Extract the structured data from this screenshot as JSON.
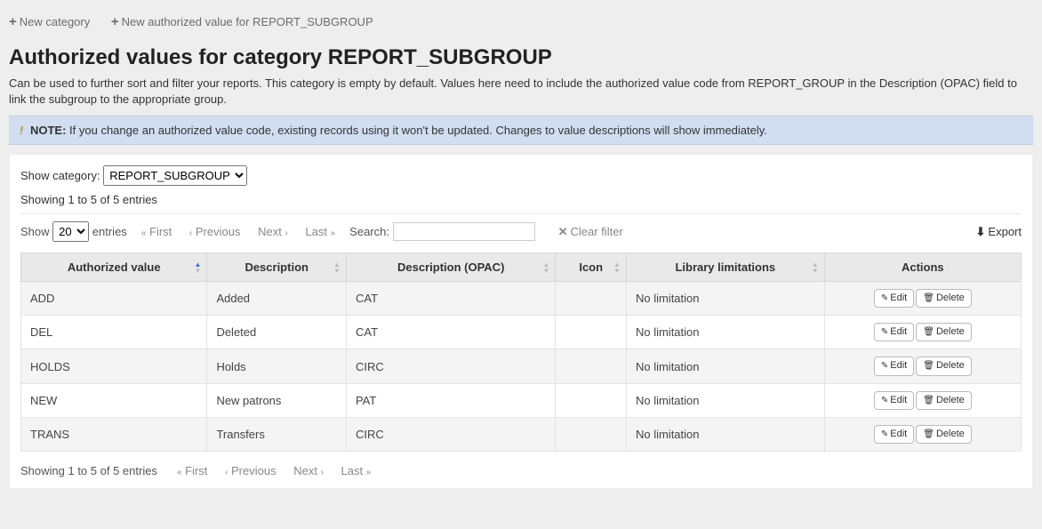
{
  "toolbar": {
    "new_category": "New category",
    "new_value": "New authorized value for REPORT_SUBGROUP"
  },
  "page": {
    "title": "Authorized values for category REPORT_SUBGROUP",
    "description": "Can be used to further sort and filter your reports. This category is empty by default. Values here need to include the authorized value code from REPORT_GROUP in the Description (OPAC) field to link the subgroup to the appropriate group."
  },
  "note": {
    "label": "NOTE:",
    "text": "If you change an authorized value code, existing records using it won't be updated. Changes to value descriptions will show immediately."
  },
  "filter": {
    "show_category_label": "Show category:",
    "selected_category": "REPORT_SUBGROUP",
    "entries_info": "Showing 1 to 5 of 5 entries"
  },
  "dt": {
    "show_label": "Show",
    "page_size": "20",
    "entries_label": "entries",
    "first": "First",
    "previous": "Previous",
    "next": "Next",
    "last": "Last",
    "search_label": "Search:",
    "clear_filter": "Clear filter",
    "export": "Export"
  },
  "columns": {
    "authorized_value": "Authorized value",
    "description": "Description",
    "description_opac": "Description (OPAC)",
    "icon": "Icon",
    "library_limitations": "Library limitations",
    "actions": "Actions"
  },
  "buttons": {
    "edit": "Edit",
    "delete": "Delete"
  },
  "rows": [
    {
      "value": "ADD",
      "description": "Added",
      "opac": "CAT",
      "icon": "",
      "limits": "No limitation"
    },
    {
      "value": "DEL",
      "description": "Deleted",
      "opac": "CAT",
      "icon": "",
      "limits": "No limitation"
    },
    {
      "value": "HOLDS",
      "description": "Holds",
      "opac": "CIRC",
      "icon": "",
      "limits": "No limitation"
    },
    {
      "value": "NEW",
      "description": "New patrons",
      "opac": "PAT",
      "icon": "",
      "limits": "No limitation"
    },
    {
      "value": "TRANS",
      "description": "Transfers",
      "opac": "CIRC",
      "icon": "",
      "limits": "No limitation"
    }
  ]
}
